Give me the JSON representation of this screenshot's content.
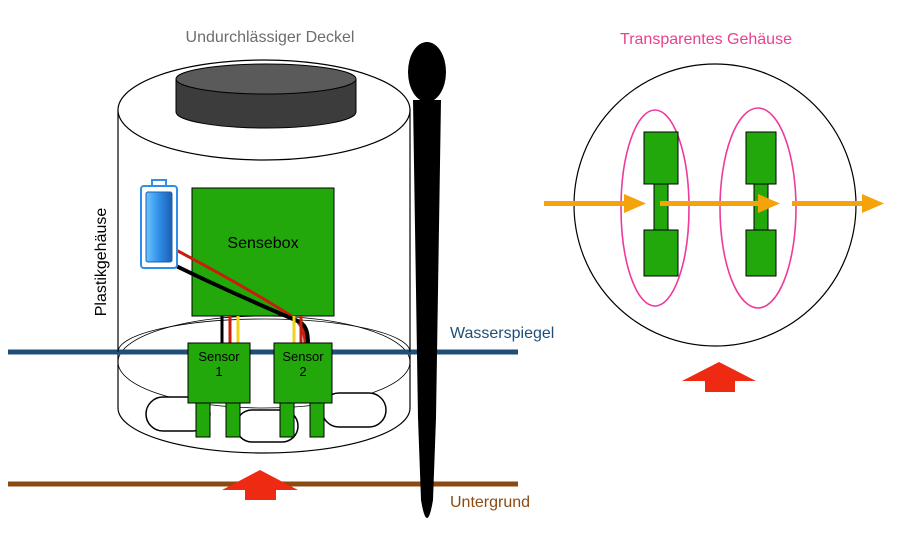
{
  "labels": {
    "lid": "Undurchlässiger Deckel",
    "housing": "Plastikgehäuse",
    "box": "Sensebox",
    "sensor1_line1": "Sensor",
    "sensor1_line2": "1",
    "sensor2_line1": "Sensor",
    "sensor2_line2": "2",
    "stake": "Pfahl",
    "water": "Wasserspiegel",
    "ground": "Untergrund",
    "transparent": "Transparentes Gehäuse"
  },
  "colors": {
    "green": "#22a80a",
    "water_line": "#1f4e79",
    "ground_line": "#8b4a12",
    "arrow_red": "#ee2a12",
    "arrow_orange": "#f5a30a",
    "pink": "#ee3a9a",
    "lid": "#3c3c3c",
    "battery": "#2f8ee8",
    "wire_red": "#c81e0c",
    "wire_black": "#000000",
    "wire_yellow": "#f2d21a",
    "transparent_label": "#e84090"
  }
}
